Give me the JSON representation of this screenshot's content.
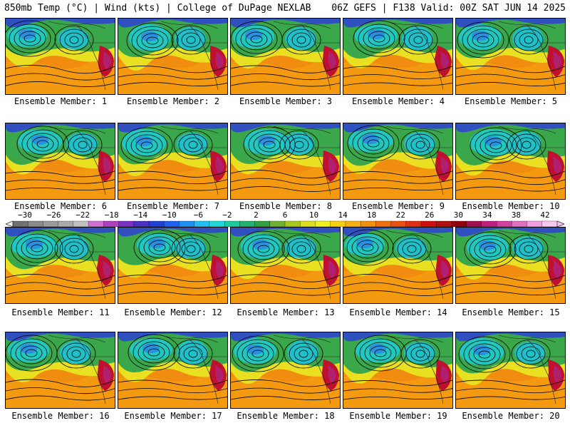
{
  "header": {
    "left": "850mb Temp (°C) | Wind (kts) | College of DuPage NEXLAB",
    "right": "06Z GEFS | F138 Valid: 00Z SAT JUN 14 2025"
  },
  "colorbar": {
    "labels": [
      "−30",
      "−26",
      "−22",
      "−18",
      "−14",
      "−10",
      "−6",
      "−2",
      "2",
      "6",
      "10",
      "14",
      "18",
      "22",
      "26",
      "30",
      "34",
      "38",
      "42"
    ],
    "colors": [
      "#707070",
      "#8a8a8a",
      "#9a9a9a",
      "#aaaaaa",
      "#c0c0c0",
      "#d070d0",
      "#b040c0",
      "#7a30c0",
      "#4a30c0",
      "#2040d0",
      "#2060f0",
      "#2090f0",
      "#20c0f0",
      "#20d8d8",
      "#20c8a0",
      "#20b070",
      "#30a040",
      "#70b030",
      "#a8c820",
      "#d8e020",
      "#f0f020",
      "#f8d010",
      "#f8b010",
      "#f09010",
      "#f07010",
      "#e85010",
      "#e03010",
      "#d01010",
      "#b01010",
      "#900010",
      "#a01050",
      "#c02080",
      "#d040a0",
      "#e070c0",
      "#f0a0e0",
      "#f8c8f0"
    ]
  },
  "members": [
    {
      "label": "Ensemble Member: 1"
    },
    {
      "label": "Ensemble Member: 2"
    },
    {
      "label": "Ensemble Member: 3"
    },
    {
      "label": "Ensemble Member: 4"
    },
    {
      "label": "Ensemble Member: 5"
    },
    {
      "label": "Ensemble Member: 6"
    },
    {
      "label": "Ensemble Member: 7"
    },
    {
      "label": "Ensemble Member: 8"
    },
    {
      "label": "Ensemble Member: 9"
    },
    {
      "label": "Ensemble Member: 10"
    },
    {
      "label": "Ensemble Member: 11"
    },
    {
      "label": "Ensemble Member: 12"
    },
    {
      "label": "Ensemble Member: 13"
    },
    {
      "label": "Ensemble Member: 14"
    },
    {
      "label": "Ensemble Member: 15"
    },
    {
      "label": "Ensemble Member: 16"
    },
    {
      "label": "Ensemble Member: 17"
    },
    {
      "label": "Ensemble Member: 18"
    },
    {
      "label": "Ensemble Member: 19"
    },
    {
      "label": "Ensemble Member: 20"
    }
  ]
}
